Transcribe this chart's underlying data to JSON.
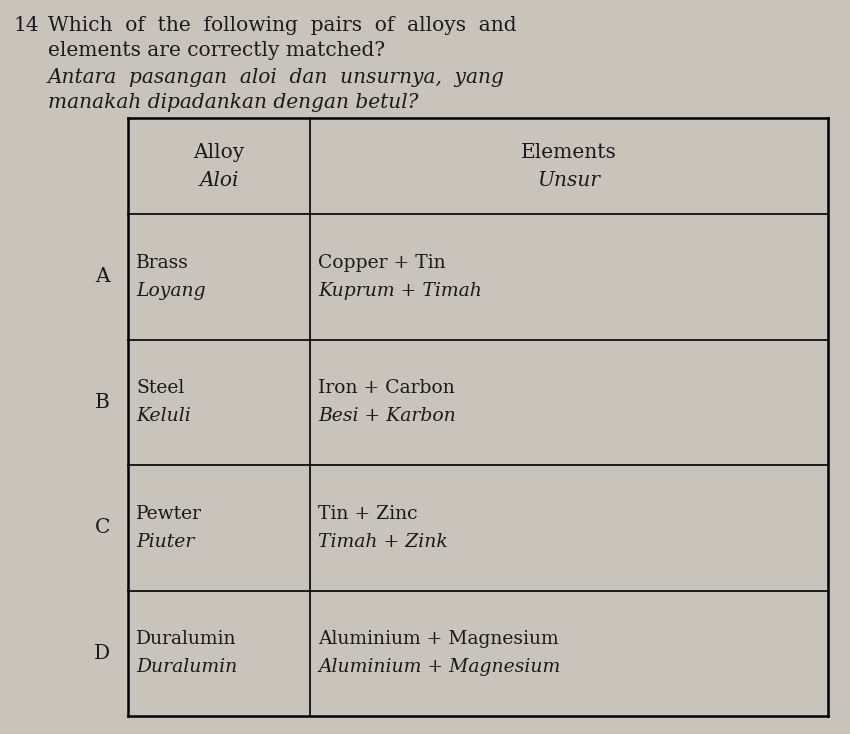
{
  "question_number": "14",
  "col_header_alloy": "Alloy",
  "col_header_aloi": "Aloi",
  "col_header_elements": "Elements",
  "col_header_unsur": "Unsur",
  "rows": [
    {
      "option": "A",
      "alloy_en": "Brass",
      "alloy_ms": "Loyang",
      "elements_en": "Copper + Tin",
      "elements_ms": "Kuprum + Timah"
    },
    {
      "option": "B",
      "alloy_en": "Steel",
      "alloy_ms": "Keluli",
      "elements_en": "Iron + Carbon",
      "elements_ms": "Besi + Karbon"
    },
    {
      "option": "C",
      "alloy_en": "Pewter",
      "alloy_ms": "Piuter",
      "elements_en": "Tin + Zinc",
      "elements_ms": "Timah + Zink"
    },
    {
      "option": "D",
      "alloy_en": "Duralumin",
      "alloy_ms": "Duralumin",
      "elements_en": "Aluminium + Magnesium",
      "elements_ms": "Aluminium + Magnesium"
    }
  ],
  "bg_color": "#c8c4bc",
  "table_bg": "#c8c4bc",
  "text_color": "#1a1a1a",
  "font_size_question": 14.5,
  "font_size_table": 13.5
}
